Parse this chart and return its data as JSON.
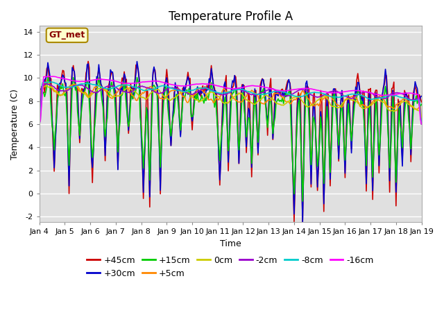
{
  "title": "Temperature Profile A",
  "xlabel": "Time",
  "ylabel": "Temperature (C)",
  "ylim": [
    -2.5,
    14.5
  ],
  "xlim": [
    0,
    360
  ],
  "xtick_labels": [
    "Jan 4",
    "Jan 5",
    "Jan 6",
    "Jan 7",
    "Jan 8",
    "Jan 9",
    "Jan 10",
    "Jan 11",
    "Jan 12",
    "Jan 13",
    "Jan 14",
    "Jan 15",
    "Jan 16",
    "Jan 17",
    "Jan 18",
    "Jan 19"
  ],
  "xtick_positions": [
    0,
    24,
    48,
    72,
    96,
    120,
    144,
    168,
    192,
    216,
    240,
    264,
    288,
    312,
    336,
    360
  ],
  "ytick_labels": [
    "-2",
    "0",
    "2",
    "4",
    "6",
    "8",
    "10",
    "12",
    "14"
  ],
  "ytick_positions": [
    -2,
    0,
    2,
    4,
    6,
    8,
    10,
    12,
    14
  ],
  "legend_label": "GT_met",
  "series_labels": [
    "+45cm",
    "+30cm",
    "+15cm",
    "+5cm",
    "0cm",
    "-2cm",
    "-8cm",
    "-16cm"
  ],
  "series_colors": [
    "#cc0000",
    "#0000cc",
    "#00cc00",
    "#ff8800",
    "#cccc00",
    "#9900cc",
    "#00cccc",
    "#ff00ff"
  ],
  "bg_color": "#e0e0e0",
  "fig_color": "#ffffff",
  "title_fontsize": 12,
  "label_fontsize": 9,
  "tick_fontsize": 8,
  "legend_fontsize": 9,
  "gt_met_bg": "#ffffcc",
  "gt_met_border": "#aa8800",
  "gt_met_text_color": "#880000",
  "linewidth": 1.2
}
